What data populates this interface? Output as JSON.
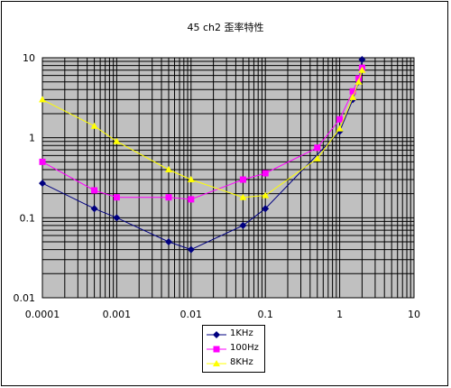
{
  "title": "45 ch2 歪率特性",
  "chart_data": {
    "type": "line",
    "title": "45 ch2 歪率特性",
    "xscale": "log",
    "yscale": "log",
    "xlim": [
      0.0001,
      10
    ],
    "ylim": [
      0.01,
      10
    ],
    "x_ticks": [
      "0.0001",
      "0.001",
      "0.01",
      "0.1",
      "1",
      "10"
    ],
    "y_ticks": [
      "10",
      "1",
      "0.1",
      "0.01"
    ],
    "grid": true,
    "plot_background": "#c0c0c0",
    "legend_position": "bottom-center",
    "series": [
      {
        "name": "1KHz",
        "color": "#000080",
        "marker": "diamond",
        "x": [
          0.0001,
          0.0005,
          0.001,
          0.005,
          0.01,
          0.05,
          0.1,
          1,
          1.5,
          1.8,
          2
        ],
        "y": [
          0.27,
          0.13,
          0.1,
          0.05,
          0.04,
          0.08,
          0.13,
          1.2,
          3,
          5,
          9.5
        ]
      },
      {
        "name": "100Hz",
        "color": "#ff00ff",
        "marker": "square",
        "x": [
          0.0001,
          0.0005,
          0.001,
          0.005,
          0.01,
          0.05,
          0.1,
          0.5,
          1,
          1.5,
          1.8,
          2
        ],
        "y": [
          0.5,
          0.22,
          0.18,
          0.18,
          0.17,
          0.3,
          0.36,
          0.75,
          1.7,
          3.8,
          5.5,
          7.5
        ]
      },
      {
        "name": "8KHz",
        "color": "#ffff00",
        "marker": "triangle",
        "x": [
          0.0001,
          0.0005,
          0.001,
          0.005,
          0.01,
          0.05,
          0.1,
          0.5,
          1,
          1.5,
          1.8,
          2
        ],
        "y": [
          3,
          1.4,
          0.9,
          0.4,
          0.3,
          0.18,
          0.19,
          0.55,
          1.3,
          3.2,
          5,
          7
        ]
      }
    ]
  }
}
